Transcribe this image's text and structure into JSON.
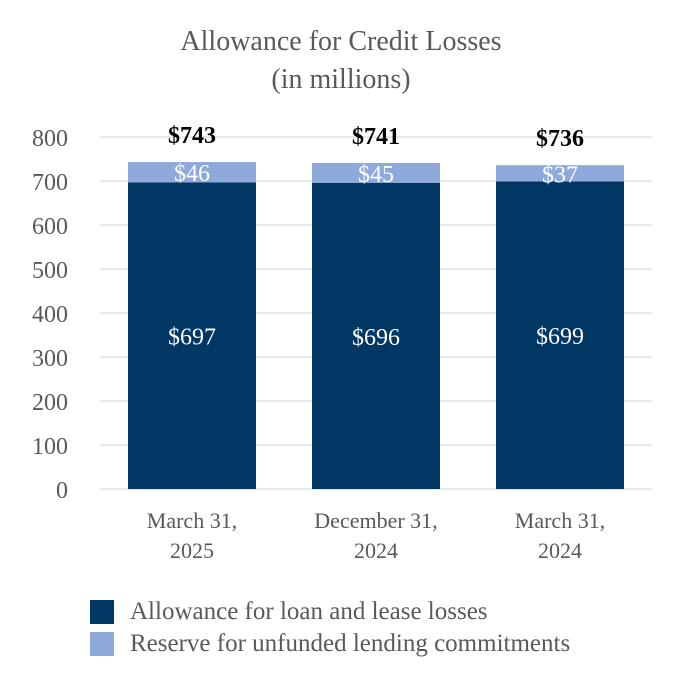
{
  "chart_data": {
    "type": "bar",
    "stacked": true,
    "title": "Allowance for Credit Losses",
    "subtitle": "(in millions)",
    "categories": [
      [
        "March 31,",
        "2025"
      ],
      [
        "December 31,",
        "2024"
      ],
      [
        "March 31,",
        "2024"
      ]
    ],
    "series": [
      {
        "name": "Allowance for loan and lease losses",
        "color": "#003764",
        "values": [
          697,
          696,
          699
        ],
        "labels": [
          "$697",
          "$696",
          "$699"
        ]
      },
      {
        "name": "Reserve for unfunded lending commitments",
        "color": "#8eaadb",
        "values": [
          46,
          45,
          37
        ],
        "labels": [
          "$46",
          "$45",
          "$37"
        ]
      }
    ],
    "totals": [
      "$743",
      "$741",
      "$736"
    ],
    "ylim": [
      0,
      800
    ],
    "yticks": [
      0,
      100,
      200,
      300,
      400,
      500,
      600,
      700,
      800
    ],
    "grid": true,
    "legend_position": "bottom"
  }
}
